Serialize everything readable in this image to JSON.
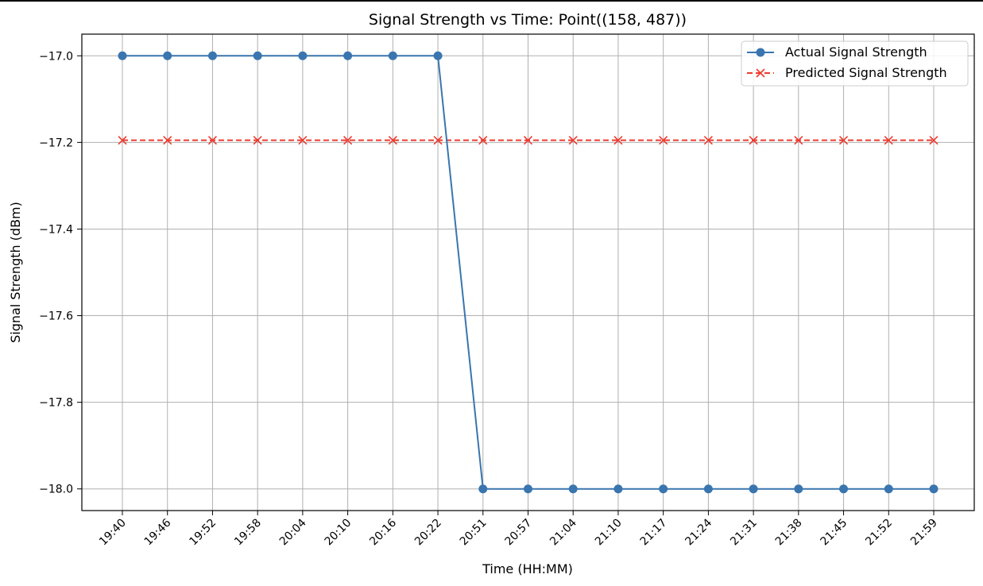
{
  "chart_data": {
    "type": "line",
    "title": "Signal Strength vs Time: Point((158, 487))",
    "xlabel": "Time (HH:MM)",
    "ylabel": "Signal Strength (dBm)",
    "categories": [
      "19:40",
      "19:46",
      "19:52",
      "19:58",
      "20:04",
      "20:10",
      "20:16",
      "20:22",
      "20:51",
      "20:57",
      "21:04",
      "21:10",
      "21:17",
      "21:24",
      "21:31",
      "21:38",
      "21:45",
      "21:52",
      "21:59"
    ],
    "series": [
      {
        "name": "Actual Signal Strength",
        "color": "#3a75af",
        "marker": "circle",
        "linestyle": "solid",
        "values": [
          -17.0,
          -17.0,
          -17.0,
          -17.0,
          -17.0,
          -17.0,
          -17.0,
          -17.0,
          -18.0,
          -18.0,
          -18.0,
          -18.0,
          -18.0,
          -18.0,
          -18.0,
          -18.0,
          -18.0,
          -18.0,
          -18.0
        ]
      },
      {
        "name": "Predicted Signal Strength",
        "color": "#ee3a2f",
        "marker": "x",
        "linestyle": "dashed",
        "values": [
          -17.195,
          -17.195,
          -17.195,
          -17.195,
          -17.195,
          -17.195,
          -17.195,
          -17.195,
          -17.195,
          -17.195,
          -17.195,
          -17.195,
          -17.195,
          -17.195,
          -17.195,
          -17.195,
          -17.195,
          -17.195,
          -17.195
        ]
      }
    ],
    "yticks": [
      -17.0,
      -17.2,
      -17.4,
      -17.6,
      -17.8,
      -18.0
    ],
    "ytick_labels": [
      "−17.0",
      "−17.2",
      "−17.4",
      "−17.6",
      "−17.8",
      "−18.0"
    ],
    "ylim": [
      -18.05,
      -16.95
    ],
    "grid": true,
    "legend_position": "top-right"
  }
}
